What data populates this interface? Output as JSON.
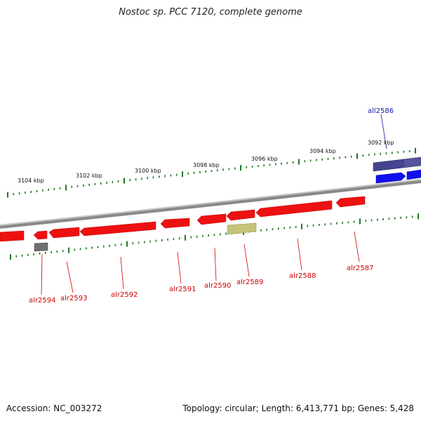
{
  "title": "Nostoc sp. PCC 7120, complete genome",
  "footer": {
    "accession": "Accession: NC_003272",
    "topology": "Topology: circular; Length: 6,413,771 bp; Genes: 5,428"
  },
  "colors": {
    "backbone": "#7f7f7f",
    "tick": "#1f7a1f",
    "forward_gene": "#ee1111",
    "reverse_gene": "#1010ee",
    "reverse_gene_dark": "#44448f",
    "gray_gene": "#707070",
    "olive_gene": "#c6c27a",
    "forward_label": "#cc0000",
    "reverse_label": "#1a1aaa"
  },
  "scale": {
    "labels": [
      "3104 kbp",
      "3102 kbp",
      "3100 kbp",
      "3098 kbp",
      "3096 kbp",
      "3094 kbp",
      "3092 kbp"
    ]
  },
  "genes": [
    {
      "label": "alr2594"
    },
    {
      "label": "alr2593"
    },
    {
      "label": "alr2592"
    },
    {
      "label": "alr2591"
    },
    {
      "label": "alr2590"
    },
    {
      "label": "alr2589"
    },
    {
      "label": "alr2588"
    },
    {
      "label": "alr2587"
    },
    {
      "label": "all2586"
    }
  ]
}
